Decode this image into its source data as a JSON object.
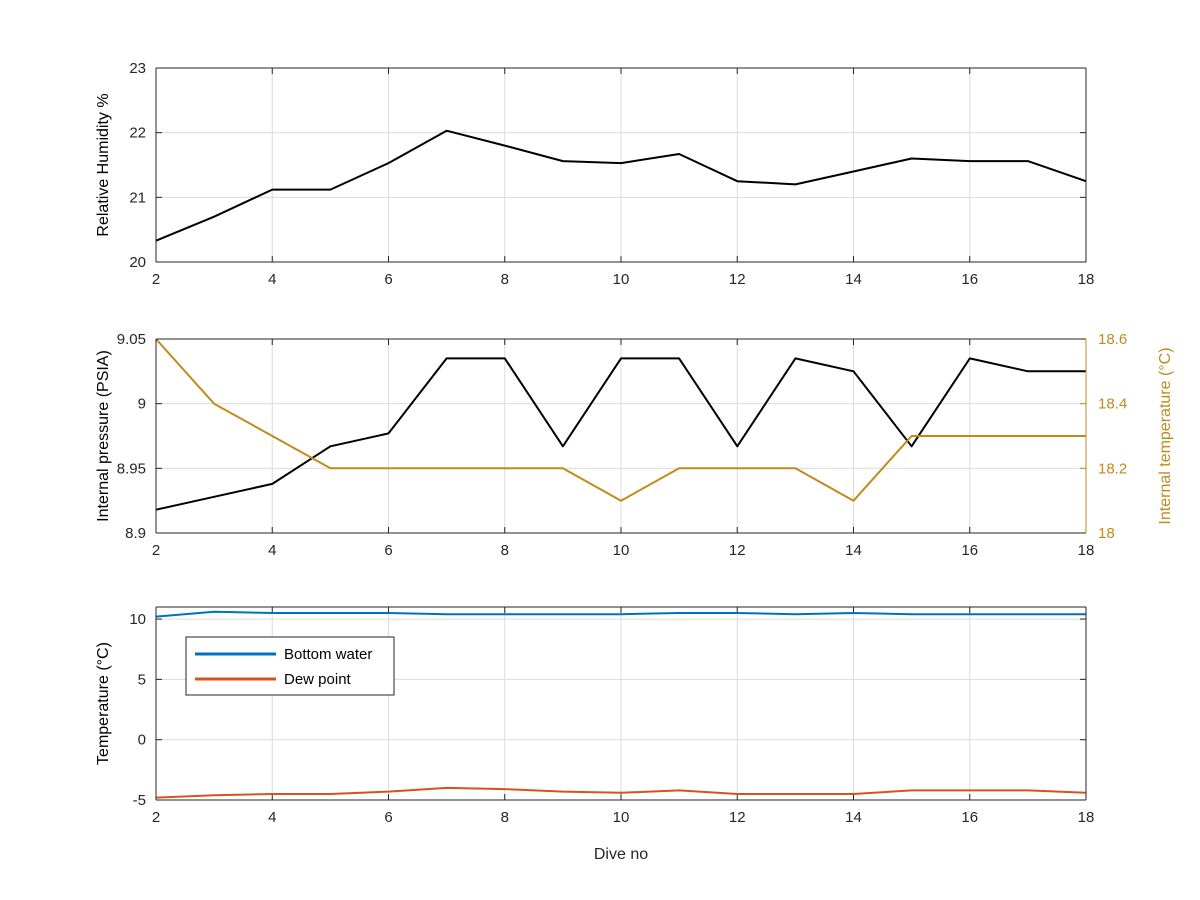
{
  "chart_data": [
    {
      "type": "line",
      "xlabel": "",
      "ylabel": "Relative Humidity %",
      "xlim": [
        2,
        18
      ],
      "ylim": [
        20,
        23
      ],
      "xticks": [
        "2",
        "4",
        "6",
        "8",
        "10",
        "12",
        "14",
        "16",
        "18"
      ],
      "yticks": [
        "20",
        "21",
        "22",
        "23"
      ],
      "grid": true,
      "series": [
        {
          "color": "#000000",
          "x": [
            2,
            3,
            4,
            5,
            6,
            7,
            8,
            9,
            10,
            11,
            12,
            13,
            14,
            15,
            16,
            17,
            18
          ],
          "values": [
            20.33,
            20.7,
            21.12,
            21.12,
            21.53,
            22.03,
            21.8,
            21.56,
            21.53,
            21.67,
            21.25,
            21.2,
            21.4,
            21.6,
            21.56,
            21.56,
            21.25
          ]
        }
      ]
    },
    {
      "type": "line",
      "xlabel": "",
      "ylabel": "Internal pressure (PSIA)",
      "ylabel_right": "Internal temperature (°C)",
      "xlim": [
        2,
        18
      ],
      "ylim": [
        8.9,
        9.05
      ],
      "ylim_right": [
        18,
        18.6
      ],
      "xticks": [
        "2",
        "4",
        "6",
        "8",
        "10",
        "12",
        "14",
        "16",
        "18"
      ],
      "yticks": [
        "8.9",
        "8.95",
        "9",
        "9.05"
      ],
      "yticks_right": [
        "18",
        "18.2",
        "18.4",
        "18.6"
      ],
      "grid": true,
      "series": [
        {
          "axis": "left",
          "color": "#000000",
          "x": [
            2,
            3,
            4,
            5,
            6,
            7,
            8,
            9,
            10,
            11,
            12,
            13,
            14,
            15,
            16,
            17,
            18
          ],
          "values": [
            8.918,
            8.928,
            8.938,
            8.967,
            8.977,
            9.035,
            9.035,
            8.967,
            9.035,
            9.035,
            8.967,
            9.035,
            9.025,
            8.967,
            9.035,
            9.025,
            9.025
          ]
        },
        {
          "axis": "right",
          "color": "#C28A1B",
          "x": [
            2,
            3,
            4,
            5,
            6,
            7,
            8,
            9,
            10,
            11,
            12,
            13,
            14,
            15,
            16,
            17,
            18
          ],
          "values": [
            18.6,
            18.4,
            18.3,
            18.2,
            18.2,
            18.2,
            18.2,
            18.2,
            18.1,
            18.2,
            18.2,
            18.2,
            18.1,
            18.3,
            18.3,
            18.3,
            18.3
          ]
        }
      ]
    },
    {
      "type": "line",
      "xlabel": "Dive no",
      "ylabel": "Temperature (°C)",
      "xlim": [
        2,
        18
      ],
      "ylim": [
        -5,
        11
      ],
      "xticks": [
        "2",
        "4",
        "6",
        "8",
        "10",
        "12",
        "14",
        "16",
        "18"
      ],
      "yticks": [
        "-5",
        "0",
        "5",
        "10"
      ],
      "ytick_values": [
        -5,
        0,
        5,
        10
      ],
      "grid": true,
      "legend_position": "top-left",
      "series": [
        {
          "name": "Bottom water",
          "color": "#0072BD",
          "x": [
            2,
            3,
            4,
            5,
            6,
            7,
            8,
            9,
            10,
            11,
            12,
            13,
            14,
            15,
            16,
            17,
            18
          ],
          "values": [
            10.2,
            10.6,
            10.5,
            10.5,
            10.5,
            10.4,
            10.4,
            10.4,
            10.4,
            10.5,
            10.5,
            10.4,
            10.5,
            10.4,
            10.4,
            10.4,
            10.4
          ]
        },
        {
          "name": "Dew point",
          "color": "#D95319",
          "x": [
            2,
            3,
            4,
            5,
            6,
            7,
            8,
            9,
            10,
            11,
            12,
            13,
            14,
            15,
            16,
            17,
            18
          ],
          "values": [
            -4.8,
            -4.6,
            -4.5,
            -4.5,
            -4.3,
            -4.0,
            -4.1,
            -4.3,
            -4.4,
            -4.2,
            -4.5,
            -4.5,
            -4.5,
            -4.2,
            -4.2,
            -4.2,
            -4.4
          ]
        }
      ]
    }
  ]
}
